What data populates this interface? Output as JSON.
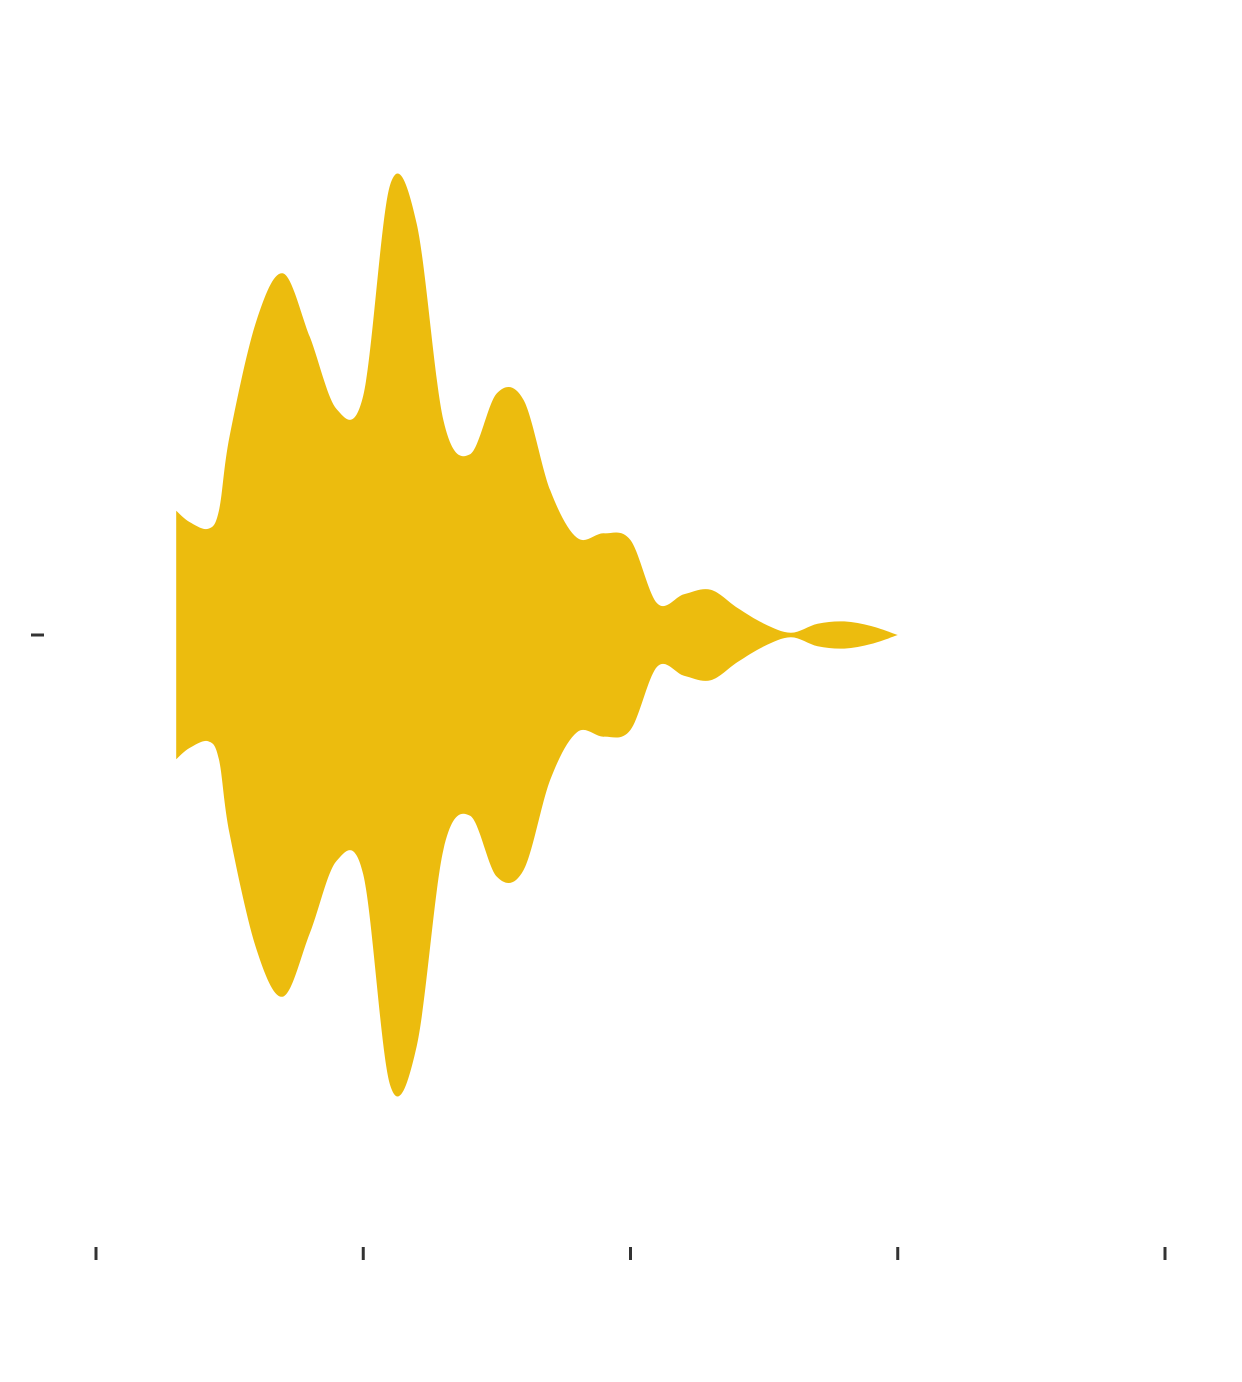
{
  "chart_data": {
    "type": "area",
    "subtype": "violin",
    "orientation": "horizontal",
    "title": "",
    "xlabel": "",
    "ylabel": "",
    "fill_color": "#ECBC0E",
    "axis_color": "#333333",
    "xlim": [
      -0.5,
      3.5
    ],
    "x_ticks": [
      -0.5,
      0.5,
      1.5,
      2.5,
      3.5
    ],
    "y_ticks": [
      0
    ],
    "grid": false,
    "legend": "none",
    "series": [
      {
        "x": [
          -0.2,
          -0.15,
          -0.08,
          -0.04,
          0.0,
          0.1,
          0.2,
          0.3,
          0.4,
          0.5,
          0.6,
          0.7,
          0.8,
          0.9,
          1.0,
          1.1,
          1.2,
          1.3,
          1.4,
          1.5,
          1.6,
          1.7,
          1.8,
          1.9,
          2.0,
          2.1,
          2.2,
          2.3,
          2.4,
          2.5
        ],
        "density": [
          0.55,
          0.5,
          0.47,
          0.55,
          0.88,
          1.39,
          1.6,
          1.32,
          1.0,
          1.06,
          1.99,
          1.82,
          0.95,
          0.8,
          1.07,
          1.04,
          0.64,
          0.43,
          0.45,
          0.42,
          0.14,
          0.18,
          0.2,
          0.12,
          0.05,
          0.01,
          0.05,
          0.06,
          0.04,
          0.0
        ]
      }
    ]
  }
}
